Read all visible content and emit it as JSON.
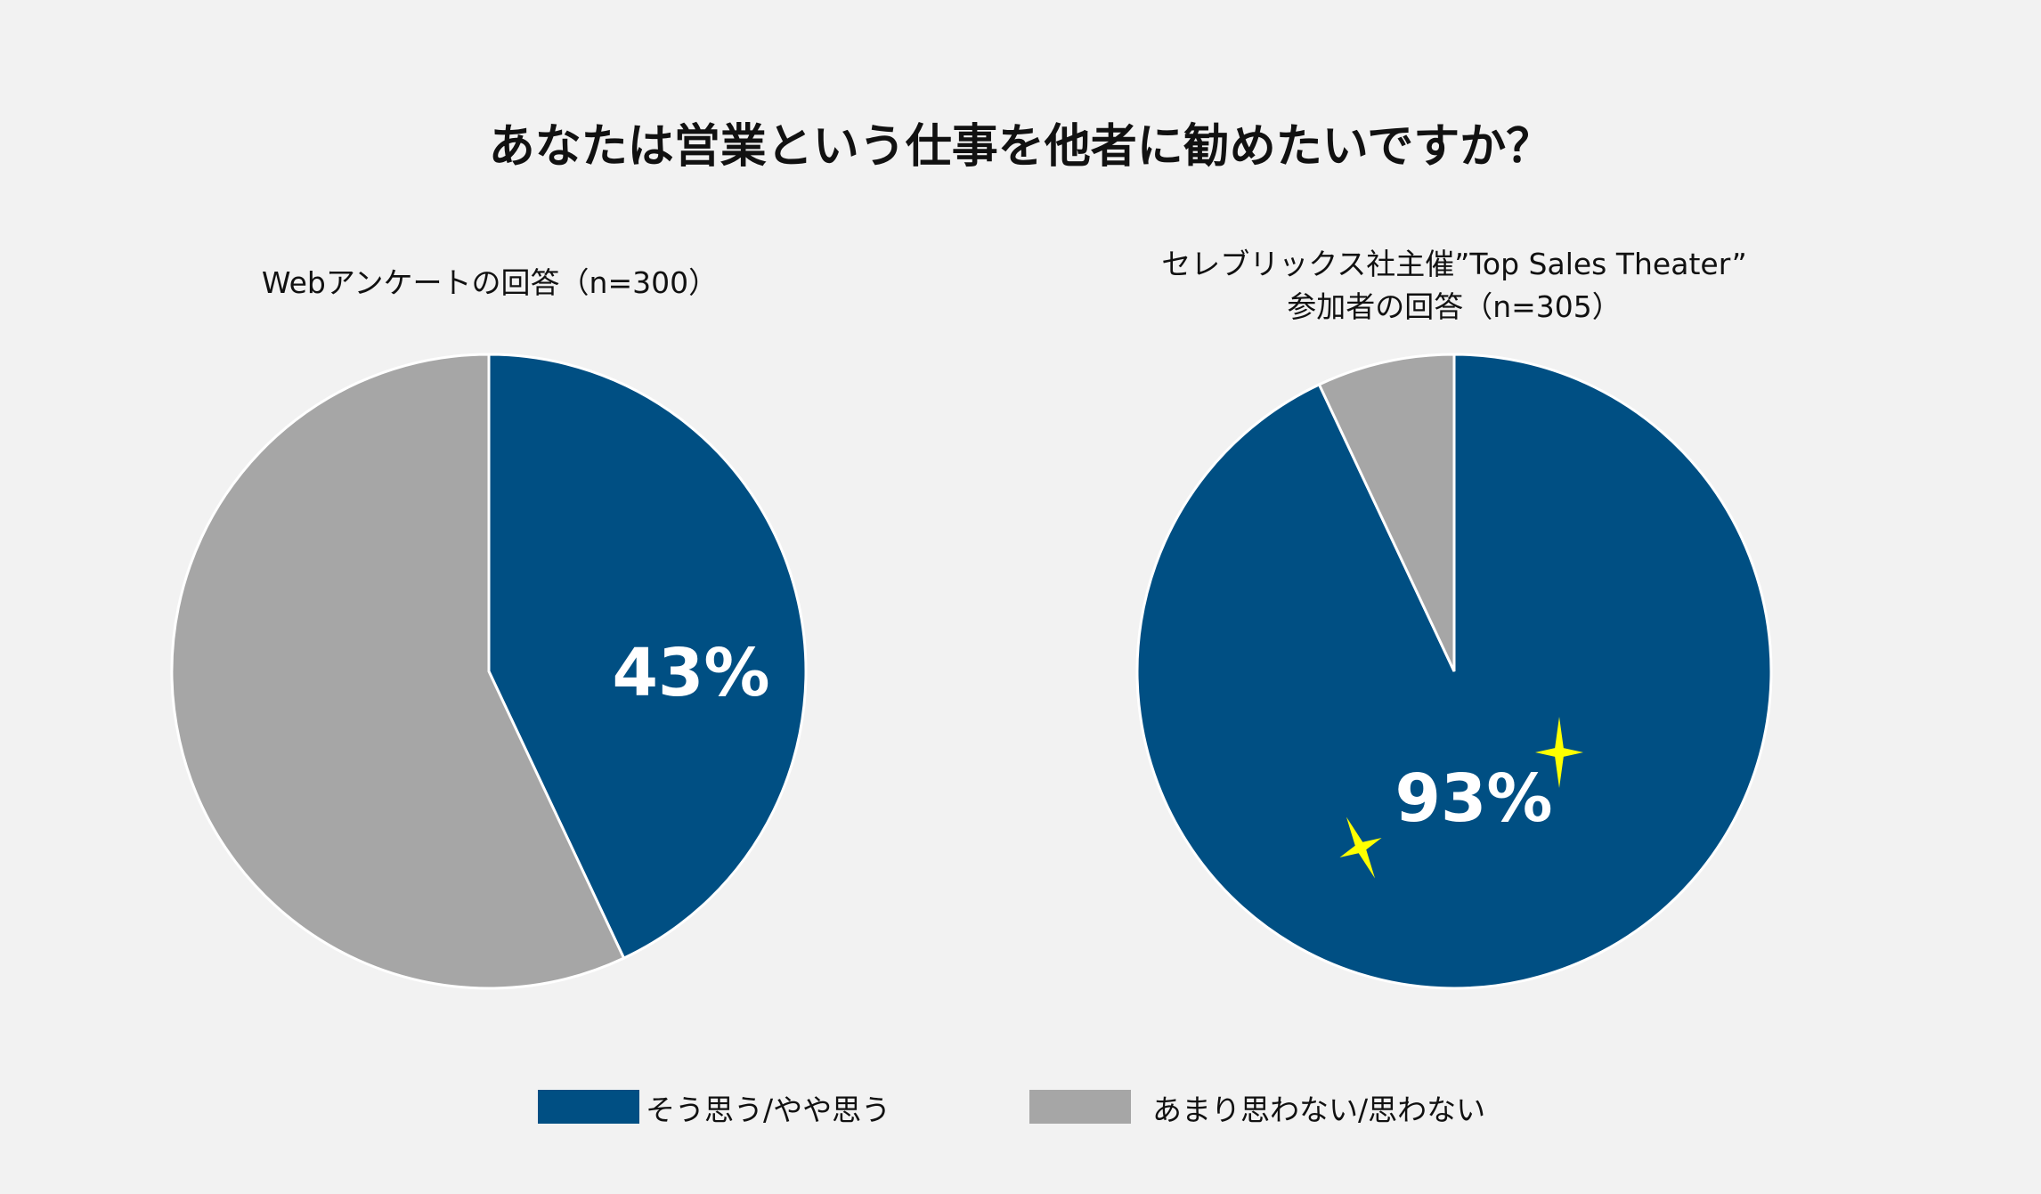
{
  "title": "あなたは営業という仕事を他者に勧めたいですか？",
  "colors": {
    "agree": "#004f83",
    "disagree": "#a6a6a6",
    "sparkle": "#ffff00",
    "background": "#f2f2f2"
  },
  "chart_data": [
    {
      "type": "pie",
      "title": "Webアンケートの回答（n=300）",
      "slices": [
        {
          "label": "そう思う/やや思う",
          "value": 43,
          "data_label": "43%"
        },
        {
          "label": "あまり思わない/思わない",
          "value": 57
        }
      ]
    },
    {
      "type": "pie",
      "title_lines": [
        "セレブリックス社主催”Top Sales Theater”",
        "参加者の回答（n=305）"
      ],
      "slices": [
        {
          "label": "そう思う/やや思う",
          "value": 93,
          "data_label": "93%"
        },
        {
          "label": "あまり思わない/思わない",
          "value": 7
        }
      ],
      "decoration": "sparkle-icons"
    }
  ],
  "legend": {
    "placement": "bottom",
    "items": [
      "そう思う/やや思う",
      "あまり思わない/思わない"
    ]
  }
}
